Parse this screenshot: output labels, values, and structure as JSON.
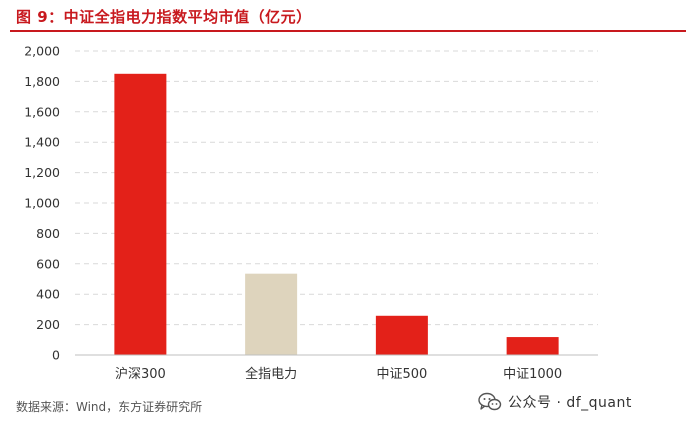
{
  "figure": {
    "title": "图 9：中证全指电力指数平均市值（亿元）",
    "source": "数据来源：Wind，东方证券研究所",
    "watermark": "公众号 · df_quant",
    "watermark_icon": "wechat-icon"
  },
  "colors": {
    "title": "#c8191e",
    "bar_primary": "#e32119",
    "bar_secondary": "#ded4bd",
    "grid": "#d9d9d9",
    "axis_text": "#333333"
  },
  "chart_data": {
    "type": "bar",
    "title": "图 9：中证全指电力指数平均市值（亿元）",
    "xlabel": "",
    "ylabel": "",
    "categories": [
      "沪深300",
      "全指电力",
      "中证500",
      "中证1000"
    ],
    "values": [
      1850,
      535,
      258,
      118
    ],
    "bar_colors": [
      "#e32119",
      "#ded4bd",
      "#e32119",
      "#e32119"
    ],
    "ylim": [
      0,
      2000
    ],
    "yticks": [
      0,
      200,
      400,
      600,
      800,
      1000,
      1200,
      1400,
      1600,
      1800,
      2000
    ],
    "ytick_labels": [
      "0",
      "200",
      "400",
      "600",
      "800",
      "1,000",
      "1,200",
      "1,400",
      "1,600",
      "1,800",
      "2,000"
    ],
    "grid": true,
    "grid_style": "dashed",
    "legend": "none"
  }
}
